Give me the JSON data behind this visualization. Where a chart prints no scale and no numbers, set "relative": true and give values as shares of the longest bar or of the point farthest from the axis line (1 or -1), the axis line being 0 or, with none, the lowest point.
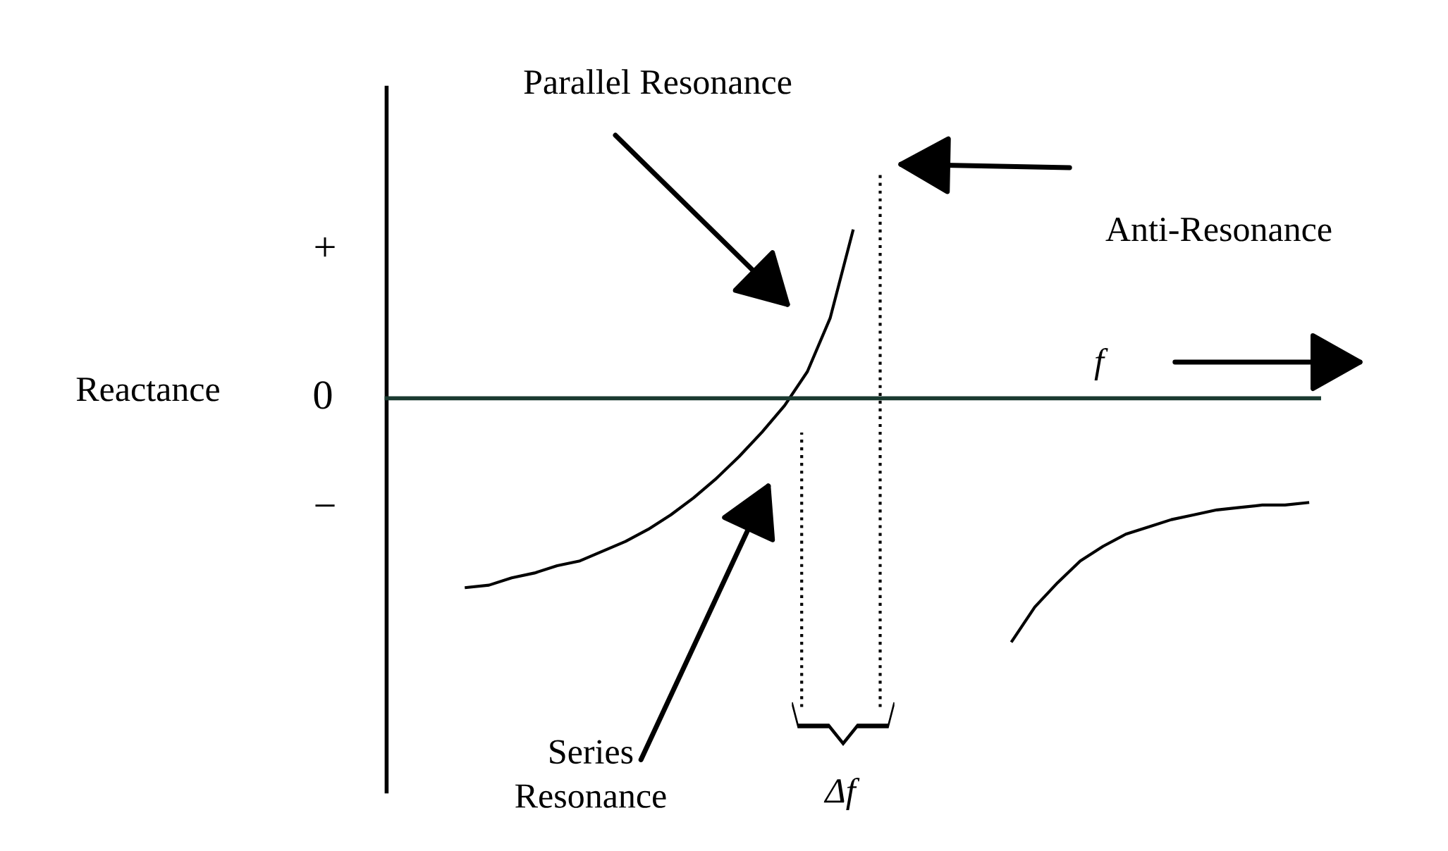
{
  "chart_data": {
    "type": "line",
    "relative": true,
    "categories": [
      null,
      null,
      null,
      null,
      null,
      null,
      null,
      null,
      null,
      null,
      null,
      null,
      null,
      null,
      null,
      null,
      null,
      null,
      null,
      null,
      null,
      null,
      null,
      null,
      null,
      null,
      null,
      null,
      null,
      null,
      null,
      null,
      null,
      null,
      null,
      null,
      null,
      null,
      null,
      null,
      null
    ],
    "series": [
      {
        "color": "#000000",
        "values": [
          null,
          null,
          null,
          -0.78,
          -0.77,
          -0.74,
          -0.72,
          -0.69,
          -0.67,
          -0.63,
          -0.59,
          -0.54,
          -0.48,
          -0.41,
          -0.33,
          -0.24,
          -0.14,
          -0.03,
          0.11,
          0.33,
          0.69,
          null,
          null,
          null,
          null,
          null,
          null,
          null,
          null,
          null,
          null,
          null,
          null,
          null,
          null,
          null,
          null,
          null,
          null,
          null,
          null
        ]
      },
      {
        "color": "#000000",
        "values": [
          null,
          null,
          null,
          null,
          null,
          null,
          null,
          null,
          null,
          null,
          null,
          null,
          null,
          null,
          null,
          null,
          null,
          null,
          null,
          null,
          null,
          null,
          null,
          null,
          null,
          null,
          null,
          -1,
          -0.86,
          -0.76,
          -0.67,
          -0.61,
          -0.56,
          -0.53,
          -0.5,
          -0.48,
          -0.46,
          -0.45,
          -0.44,
          -0.44,
          -0.43
        ]
      }
    ],
    "annotations": [
      "Parallel Resonance",
      "Anti-Resonance",
      "Series\nResonance",
      "f",
      "Δf",
      "+",
      "0",
      "−",
      "Reactance"
    ],
    "legend": false,
    "marker": "none",
    "line_style": "solid"
  }
}
